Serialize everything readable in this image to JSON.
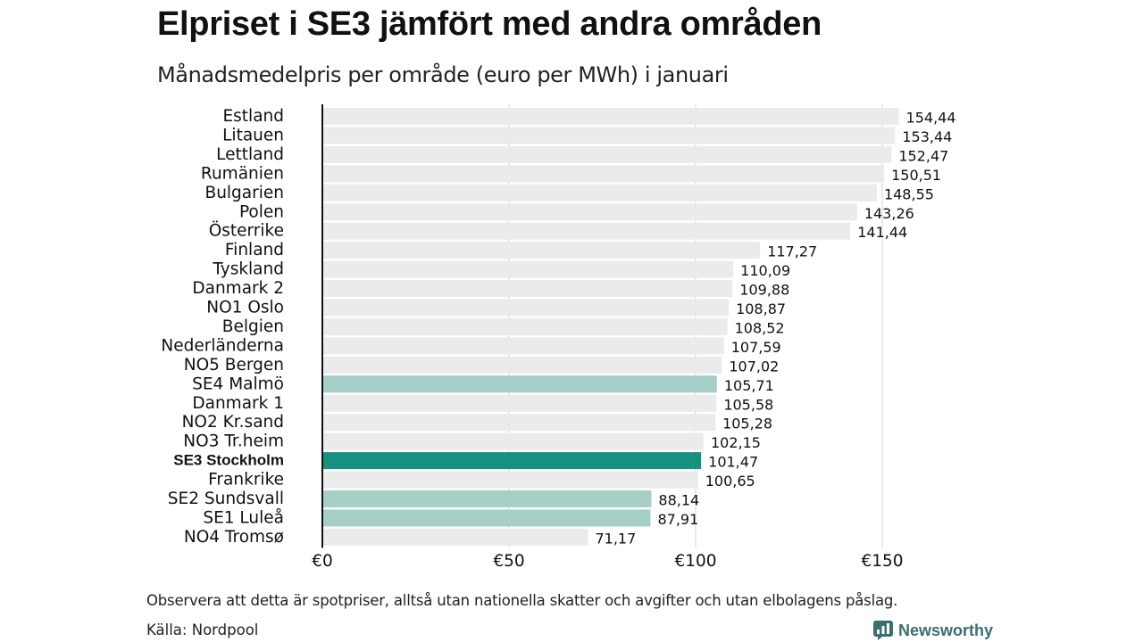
{
  "chart_data": {
    "type": "bar",
    "orientation": "horizontal",
    "title": "Elpriset i SE3 jämfört med andra områden",
    "subtitle": "Månadsmedelpris per område (euro per MWh) i januari",
    "categories": [
      "Estland",
      "Litauen",
      "Lettland",
      "Rumänien",
      "Bulgarien",
      "Polen",
      "Österrike",
      "Finland",
      "Tyskland",
      "Danmark  2",
      "NO1 Oslo",
      "Belgien",
      "Nederländerna",
      "NO5 Bergen",
      "SE4  Malmö",
      "Danmark  1",
      "NO2 Kr.sand",
      "NO3 Tr.heim",
      "SE3 Stockholm",
      "Frankrike",
      "SE2  Sundsvall",
      "SE1  Luleå",
      "NO4 Tromsø"
    ],
    "values": [
      154.44,
      153.44,
      152.47,
      150.51,
      148.55,
      143.26,
      141.44,
      117.27,
      110.09,
      109.88,
      108.87,
      108.52,
      107.59,
      107.02,
      105.71,
      105.58,
      105.28,
      102.15,
      101.47,
      100.65,
      88.14,
      87.91,
      71.17
    ],
    "value_labels": [
      "154,44",
      "153,44",
      "152,47",
      "150,51",
      "148,55",
      "143,26",
      "141,44",
      "117,27",
      "110,09",
      "109,88",
      "108,87",
      "108,52",
      "107,59",
      "107,02",
      "105,71",
      "105,58",
      "105,28",
      "102,15",
      "101,47",
      "100,65",
      "88,14",
      "87,91",
      "71,17"
    ],
    "highlight": [
      "none",
      "none",
      "none",
      "none",
      "none",
      "none",
      "none",
      "none",
      "none",
      "none",
      "none",
      "none",
      "none",
      "none",
      "light",
      "none",
      "none",
      "none",
      "main",
      "none",
      "light",
      "light",
      "none"
    ],
    "xlim": [
      0,
      175
    ],
    "xticks": [
      0,
      50,
      100,
      150
    ],
    "xtick_labels": [
      "€0",
      "€50",
      "€100",
      "€150"
    ],
    "xlabel": "",
    "ylabel": "",
    "grid": true,
    "colors": {
      "default": "#ebebeb",
      "light": "#a6cfc8",
      "main": "#16917f",
      "axis": "#111111",
      "grid": "#d4d4d4"
    }
  },
  "footer": {
    "note": "Observera att detta är spotpriser, alltså utan nationella skatter och avgifter och utan elbolagens påslag.",
    "source": "Källa: Nordpool",
    "brand": "Newsworthy"
  }
}
